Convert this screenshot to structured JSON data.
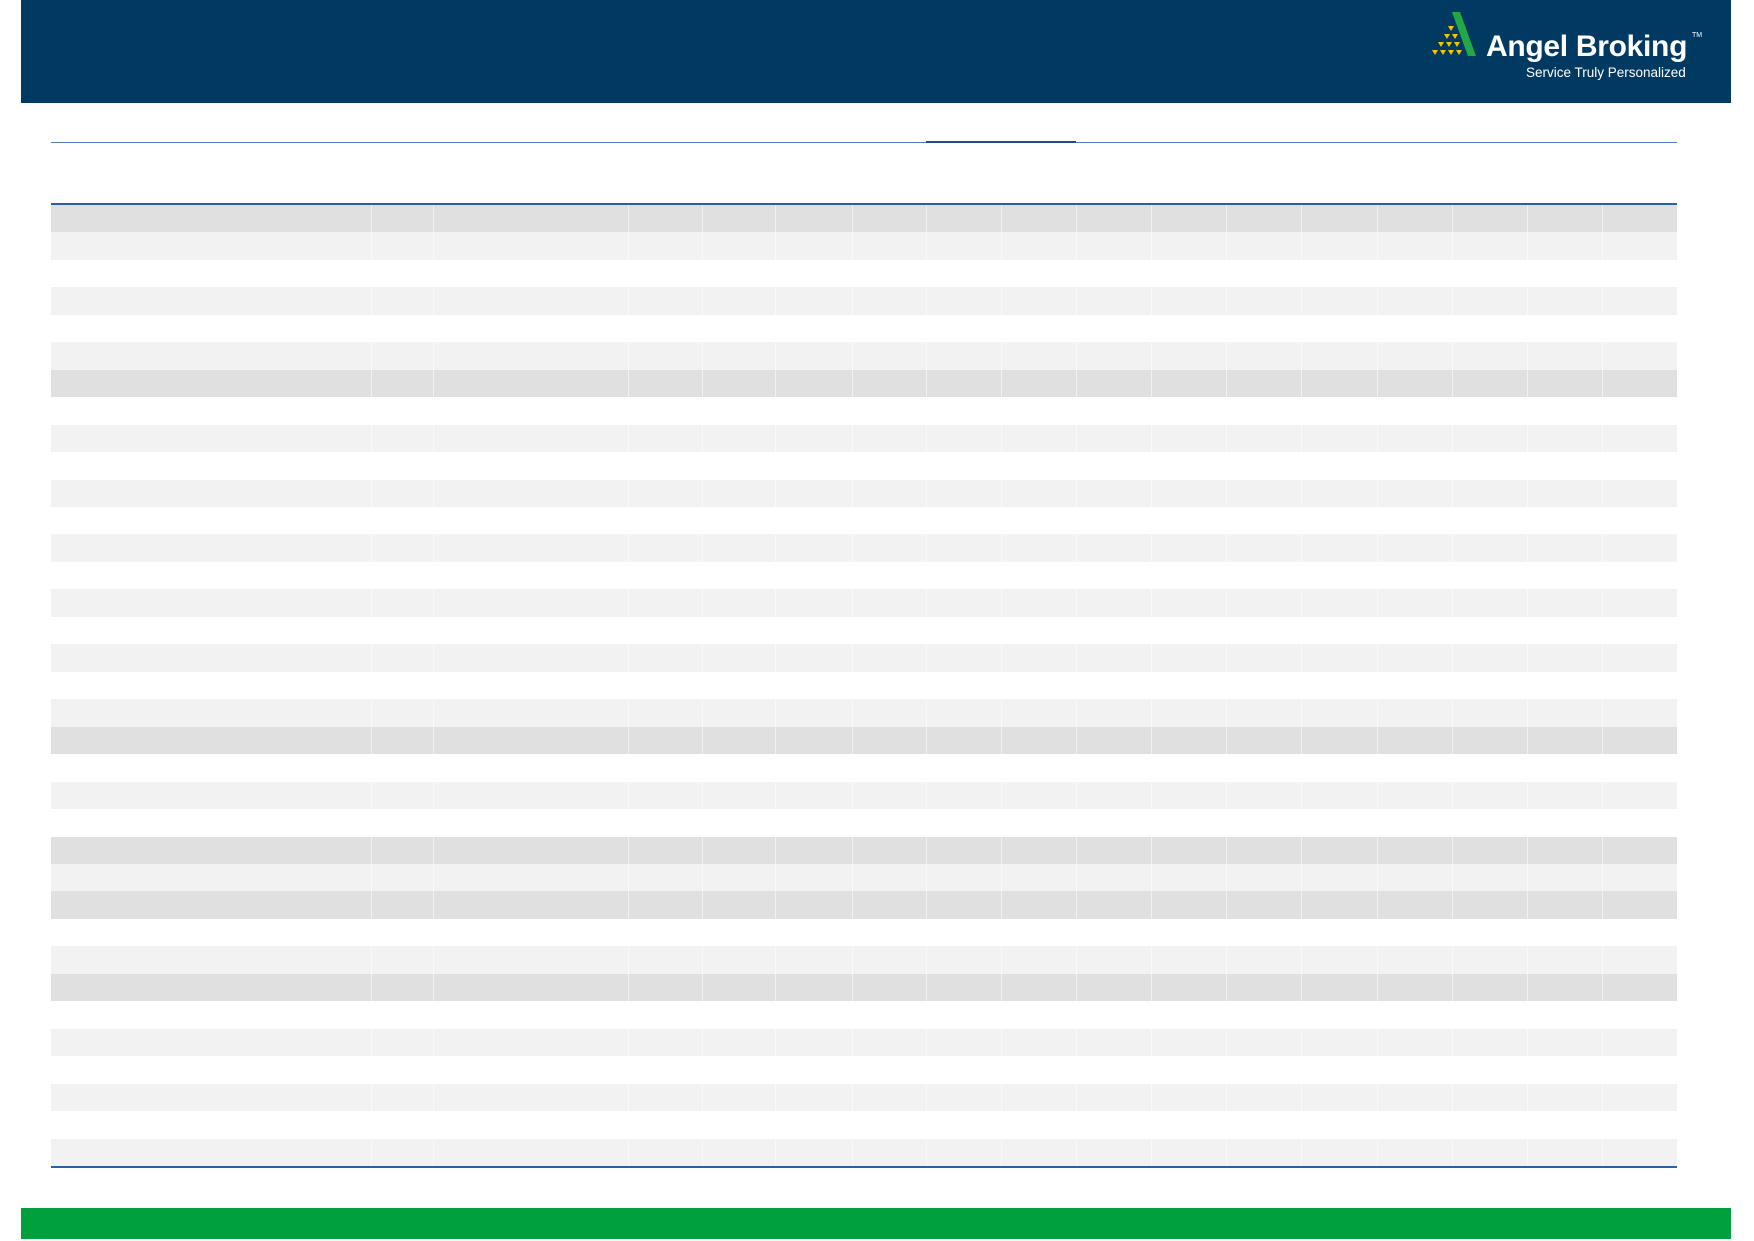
{
  "header": {
    "logo": {
      "name": "Angel Broking",
      "trademark": "TM",
      "tagline": "Service Truly Personalized"
    }
  },
  "colors": {
    "header_bg": "#003a63",
    "footer_bg": "#00a03c",
    "rule": "#2d5ea8",
    "row_dark": "#e0e0e0",
    "row_light": "#f2f2f2",
    "row_white": "#ffffff",
    "logo_green": "#22a846",
    "logo_gold": "#f2c500"
  },
  "table": {
    "row_shading": [
      "D",
      "L",
      "W",
      "L",
      "W",
      "L",
      "D",
      "W",
      "L",
      "W",
      "L",
      "W",
      "L",
      "W",
      "L",
      "W",
      "L",
      "W",
      "L",
      "D",
      "W",
      "L",
      "W",
      "D",
      "L",
      "D",
      "W",
      "L",
      "D",
      "W",
      "L",
      "W",
      "L",
      "W",
      "L"
    ]
  }
}
